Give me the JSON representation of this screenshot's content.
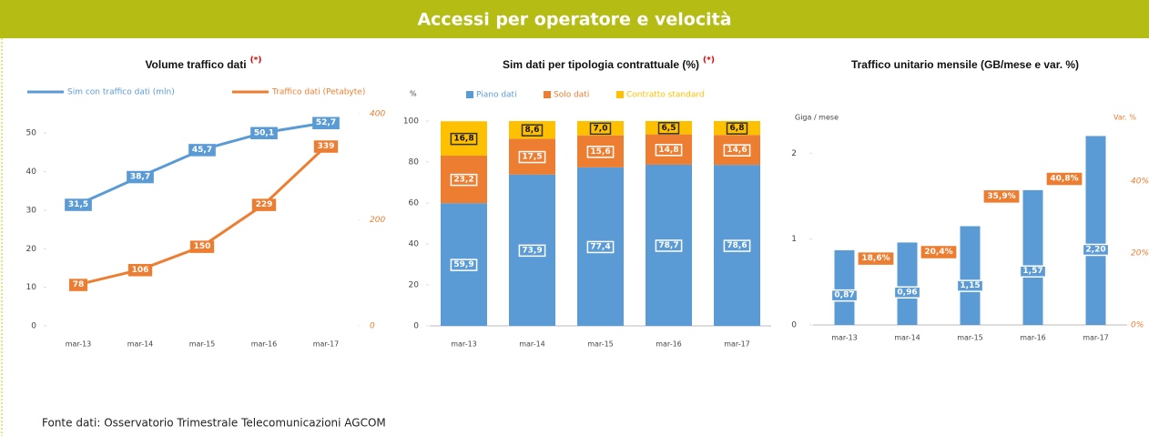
{
  "header": {
    "title": "Accessi per operatore e velocità"
  },
  "chart_data": [
    {
      "type": "line",
      "title": "Volume traffico dati",
      "title_note": "(*)",
      "categories": [
        "mar-13",
        "mar-14",
        "mar-15",
        "mar-16",
        "mar-17"
      ],
      "series": [
        {
          "name": "Sim con traffico dati (mln)",
          "color": "#5b9bd5",
          "values": [
            31.5,
            38.7,
            45.7,
            50.1,
            52.7
          ],
          "value_labels": [
            "31,5",
            "38,7",
            "45,7",
            "50,1",
            "52,7"
          ]
        },
        {
          "name": "Traffico dati (Petabyte)",
          "color": "#ed7d31",
          "axis": "y2",
          "values": [
            78,
            106,
            150,
            229,
            339
          ]
        }
      ],
      "ylim": [
        0,
        55
      ],
      "yticks": [
        0,
        10,
        20,
        30,
        40,
        50
      ],
      "y2lim": [
        0,
        400
      ],
      "y2ticks": [
        0,
        200,
        400
      ],
      "legend": "top"
    },
    {
      "type": "stacked_bar",
      "title": "Sim dati per tipologia contrattuale (%)",
      "title_note": "(*)",
      "ylabel": "%",
      "categories": [
        "mar-13",
        "mar-14",
        "mar-15",
        "mar-16",
        "mar-17"
      ],
      "series": [
        {
          "name": "Piano dati",
          "color": "#5b9bd5",
          "values": [
            59.9,
            73.9,
            77.4,
            78.7,
            78.6
          ],
          "value_labels": [
            "59,9",
            "73,9",
            "77,4",
            "78,7",
            "78,6"
          ]
        },
        {
          "name": "Solo dati",
          "color": "#ed7d31",
          "values": [
            23.2,
            17.5,
            15.6,
            14.8,
            14.6
          ],
          "value_labels": [
            "23,2",
            "17,5",
            "15,6",
            "14,8",
            "14,6"
          ]
        },
        {
          "name": "Contratto standard",
          "color": "#ffc000",
          "values": [
            16.8,
            8.6,
            7.0,
            6.5,
            6.8
          ],
          "value_labels": [
            "16,8",
            "8,6",
            "7,0",
            "6,5",
            "6,8"
          ]
        }
      ],
      "ylim": [
        0,
        100
      ],
      "yticks": [
        0,
        20,
        40,
        60,
        80,
        100
      ],
      "legend": "top"
    },
    {
      "type": "combo",
      "title": "Traffico unitario mensile (GB/mese e var. %)",
      "ylabel": "Giga / mese",
      "y2label": "Var. %",
      "categories": [
        "mar-13",
        "mar-14",
        "mar-15",
        "mar-16",
        "mar-17"
      ],
      "series": [
        {
          "color": "#5b9bd5",
          "values": [
            0.87,
            0.96,
            1.15,
            1.57,
            2.2
          ],
          "value_labels": [
            "0,87",
            "0,96",
            "1,15",
            "1,57",
            "2,20"
          ]
        },
        {
          "color": "#ed7d31",
          "axis": "y2",
          "values": [
            null,
            18.6,
            20.4,
            35.9,
            40.8
          ],
          "value_labels": [
            null,
            "18,6%",
            "20,4%",
            "35,9%",
            "40,8%"
          ]
        }
      ],
      "ylim": [
        0,
        2.3
      ],
      "yticks": [
        0,
        1,
        2
      ],
      "y2lim": [
        0,
        55
      ],
      "y2ticks": [
        {
          "value": 0,
          "label": "0%"
        },
        {
          "value": 20,
          "label": "20%"
        },
        {
          "value": 40,
          "label": "40%"
        }
      ]
    }
  ],
  "footer": {
    "source": "Fonte dati: Osservatorio Trimestrale Telecomunicazioni AGCOM"
  }
}
